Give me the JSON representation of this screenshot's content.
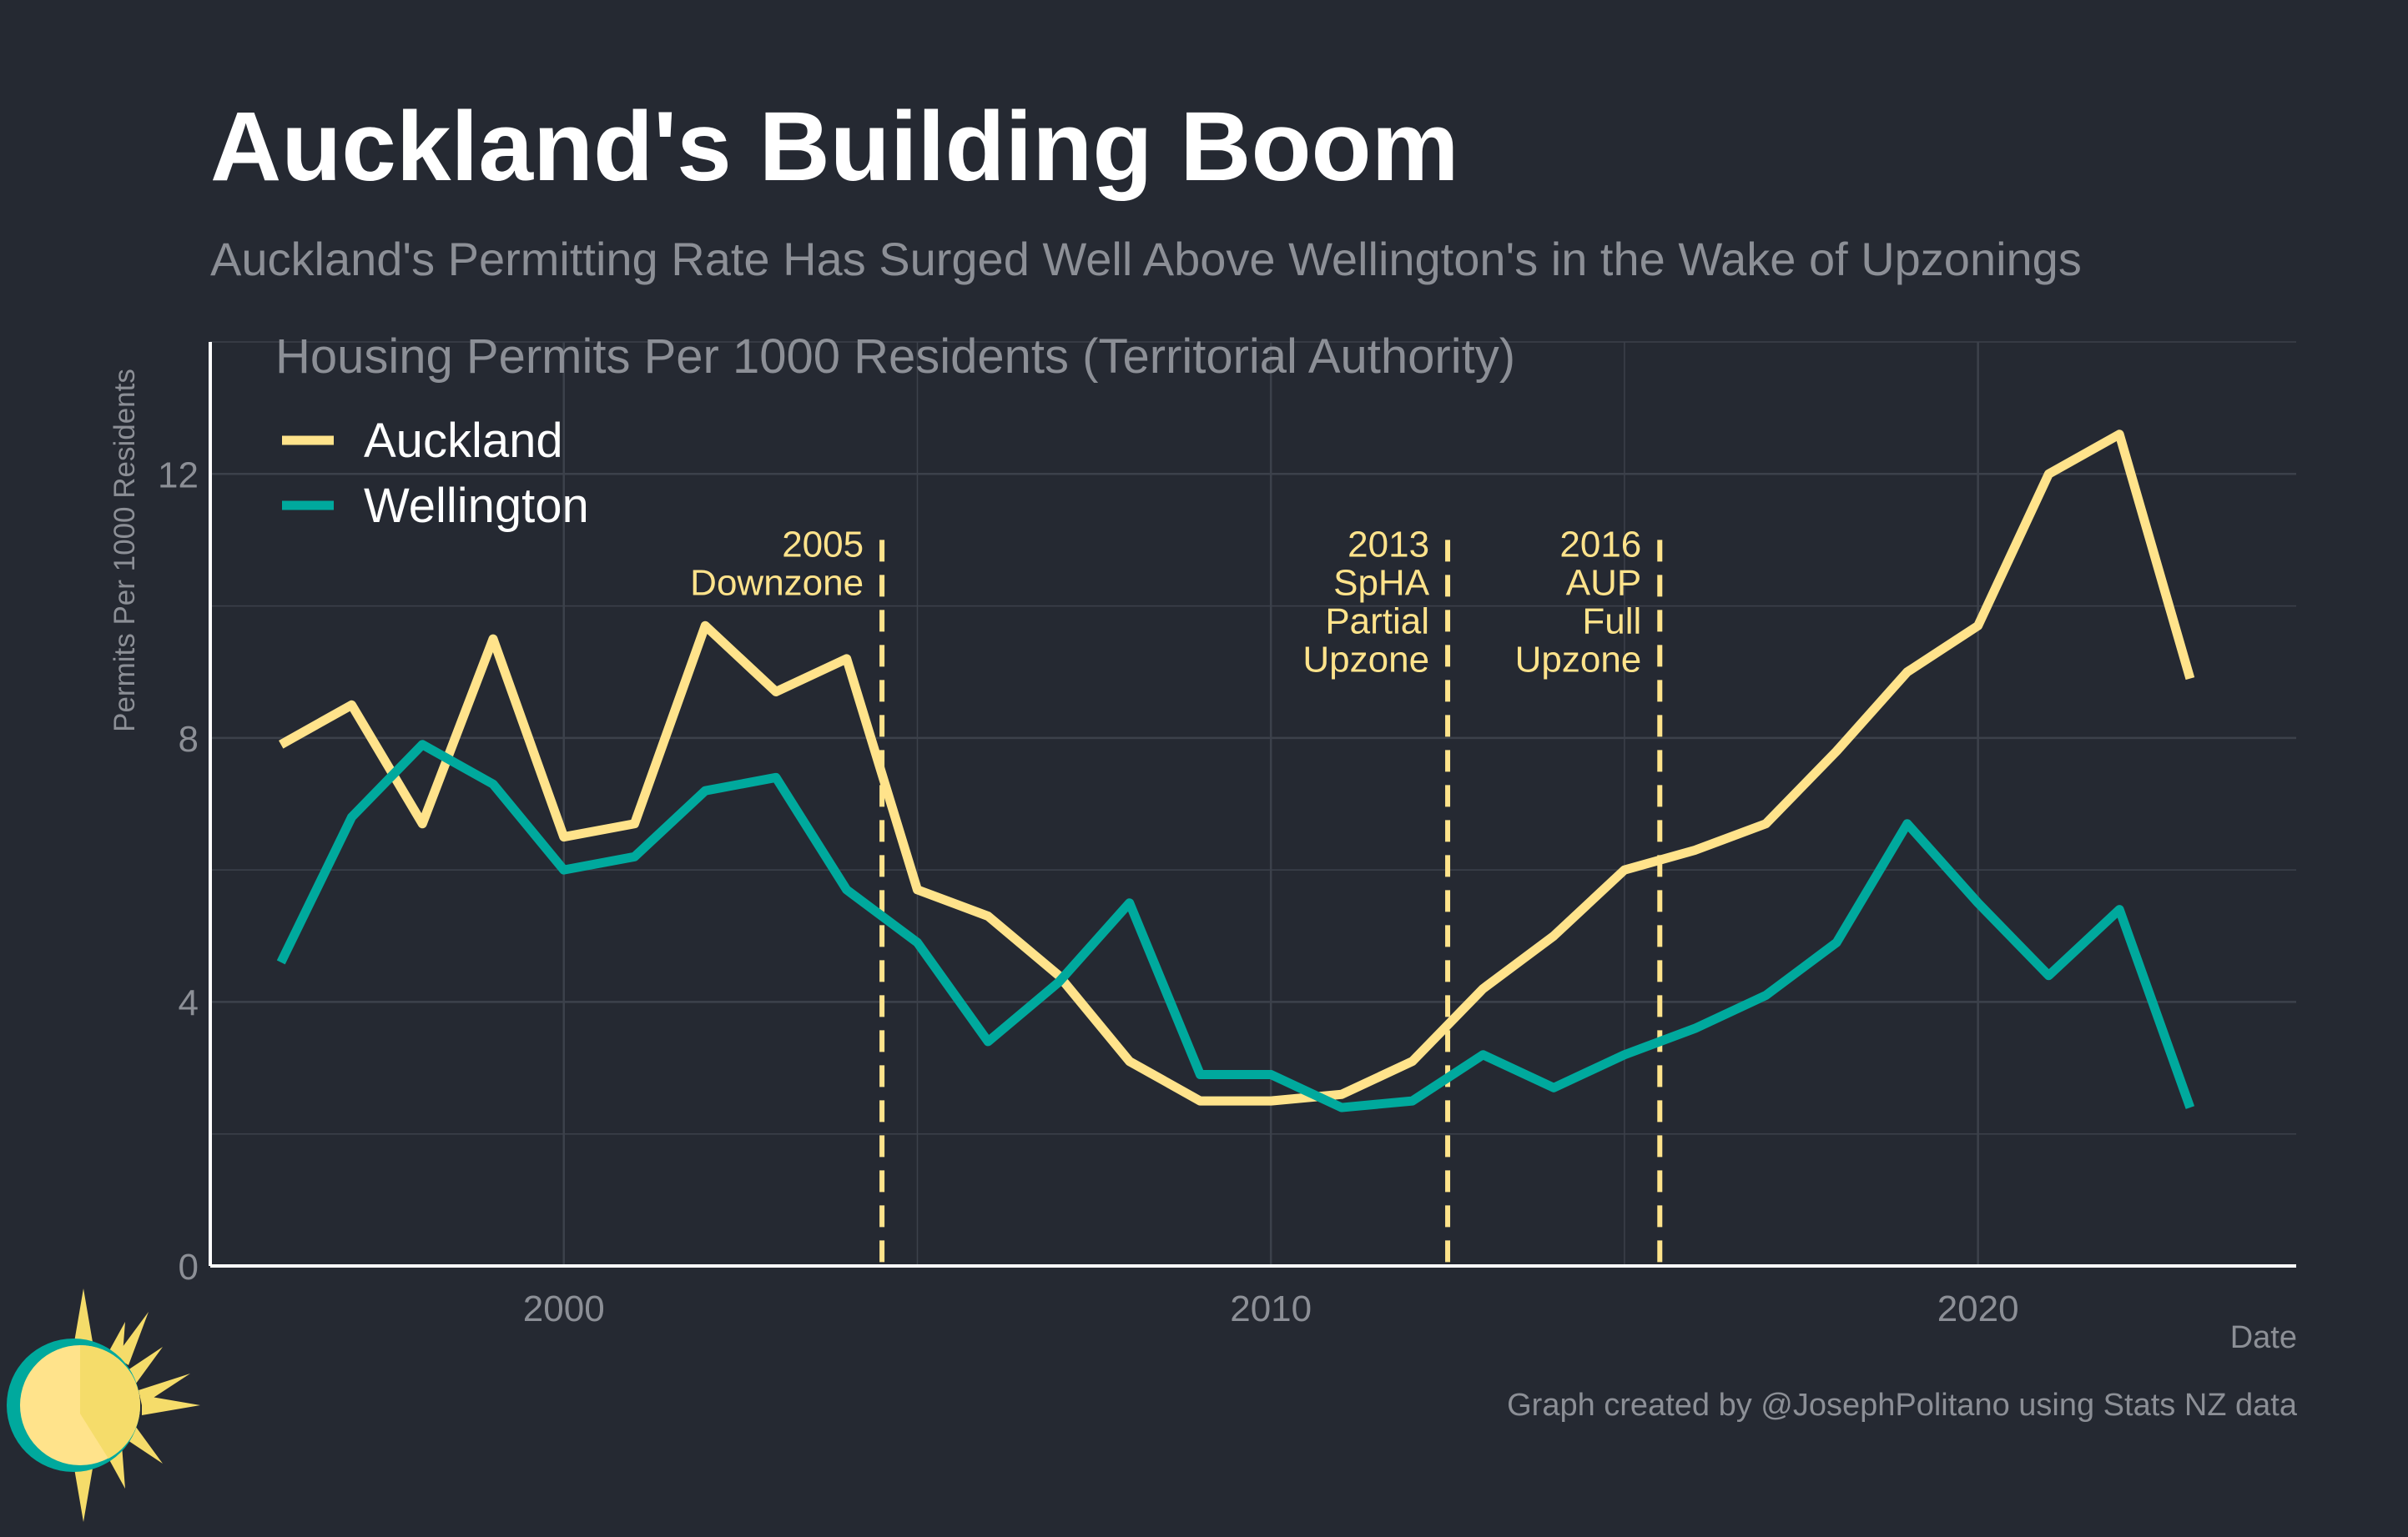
{
  "header": {
    "title": "Auckland's Building Boom",
    "subtitle": "Auckland's Permitting Rate Has Surged Well Above Wellington's in the Wake of Upzonings"
  },
  "footer": {
    "caption": "Graph created by @JosephPolitano using Stats NZ data"
  },
  "logo": {
    "icon": "sun-logo-icon"
  },
  "chart_data": {
    "type": "line",
    "title": "Housing Permits Per 1000 Residents (Territorial Authority)",
    "xlabel": "Date",
    "ylabel": "Permits Per 1000 Residents",
    "xlim": [
      1995,
      2024.5
    ],
    "ylim": [
      0,
      14
    ],
    "xticks": [
      2000,
      2010,
      2020
    ],
    "yticks": [
      0,
      4,
      8,
      12
    ],
    "grid": true,
    "legend_position": "top-left",
    "x": [
      1996,
      1997,
      1998,
      1999,
      2000,
      2001,
      2002,
      2003,
      2004,
      2005,
      2006,
      2007,
      2008,
      2009,
      2010,
      2011,
      2012,
      2013,
      2014,
      2015,
      2016,
      2017,
      2018,
      2019,
      2020,
      2021,
      2022,
      2023
    ],
    "series": [
      {
        "name": "Auckland",
        "color": "#FFE38B",
        "values": [
          7.9,
          8.5,
          6.7,
          9.5,
          6.5,
          6.7,
          9.7,
          8.7,
          9.2,
          5.7,
          5.3,
          4.4,
          3.1,
          2.5,
          2.5,
          2.6,
          3.1,
          4.2,
          5.0,
          6.0,
          6.3,
          6.7,
          7.8,
          9.0,
          9.7,
          12.0,
          12.6,
          8.9
        ]
      },
      {
        "name": "Wellington",
        "color": "#00A99D",
        "values": [
          4.6,
          6.8,
          7.9,
          7.3,
          6.0,
          6.2,
          7.2,
          7.4,
          5.7,
          4.9,
          3.4,
          4.3,
          5.5,
          2.9,
          2.9,
          2.4,
          2.5,
          3.2,
          2.7,
          3.2,
          3.6,
          4.1,
          4.9,
          6.7,
          5.5,
          4.4,
          5.4,
          2.4
        ]
      }
    ],
    "events": [
      {
        "x": 2004.5,
        "lines": [
          "2005",
          "Downzone"
        ]
      },
      {
        "x": 2012.5,
        "lines": [
          "2013",
          "SpHA",
          "Partial",
          "Upzone"
        ]
      },
      {
        "x": 2015.5,
        "lines": [
          "2016",
          "AUP",
          "Full",
          "Upzone"
        ]
      }
    ],
    "event_color": "#FFE38B"
  }
}
